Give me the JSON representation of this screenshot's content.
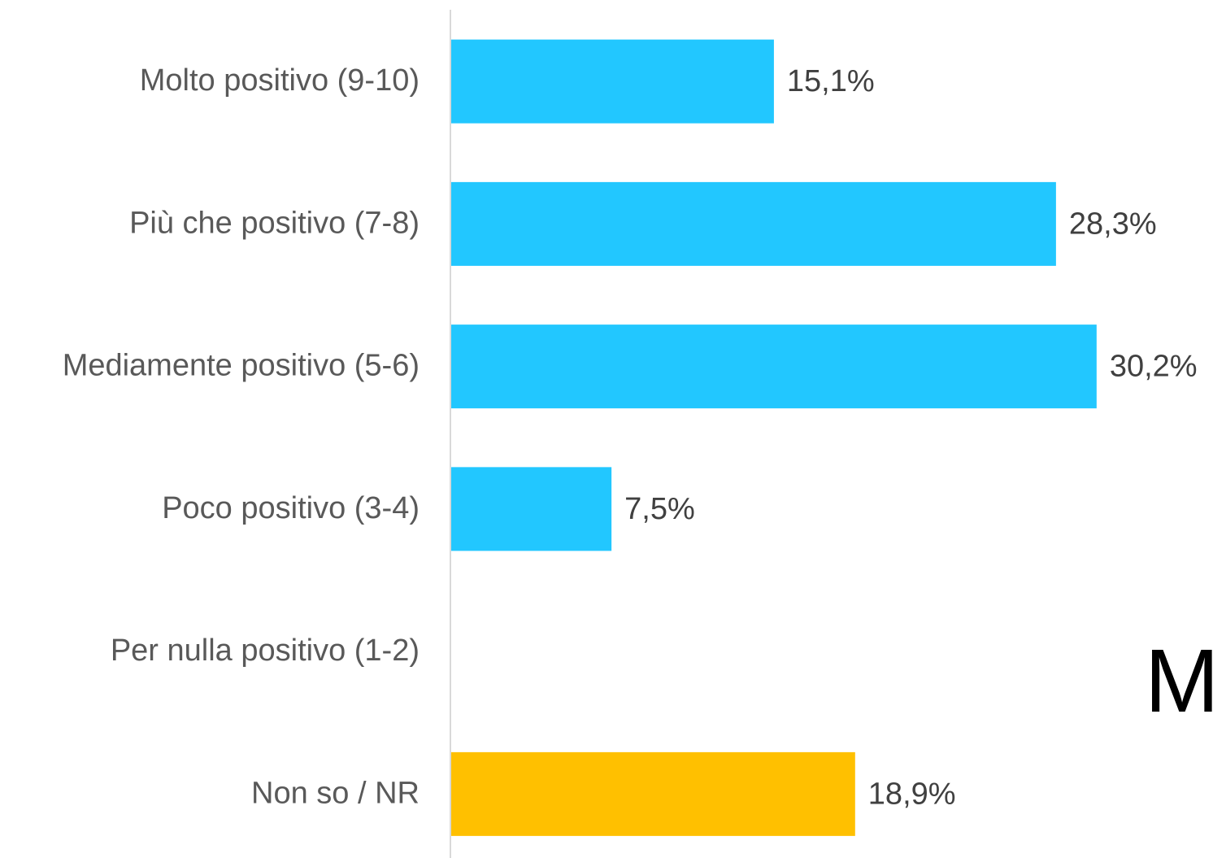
{
  "chart_data": {
    "type": "hbar",
    "categories": [
      "Molto positivo (9-10)",
      "Più che positivo (7-8)",
      "Mediamente positivo (5-6)",
      "Poco positivo (3-4)",
      "Per nulla positivo (1-2)",
      "Non so / NR"
    ],
    "values": [
      15.1,
      28.3,
      30.2,
      7.5,
      null,
      18.9
    ],
    "value_labels": [
      "15,1%",
      "28,3%",
      "30,2%",
      "7,5%",
      null,
      "18,9%"
    ],
    "colors": [
      "#22c7ff",
      "#22c7ff",
      "#22c7ff",
      "#22c7ff",
      "#22c7ff",
      "#ffc000"
    ],
    "xlim": [
      0,
      35
    ],
    "annotation": "M"
  }
}
